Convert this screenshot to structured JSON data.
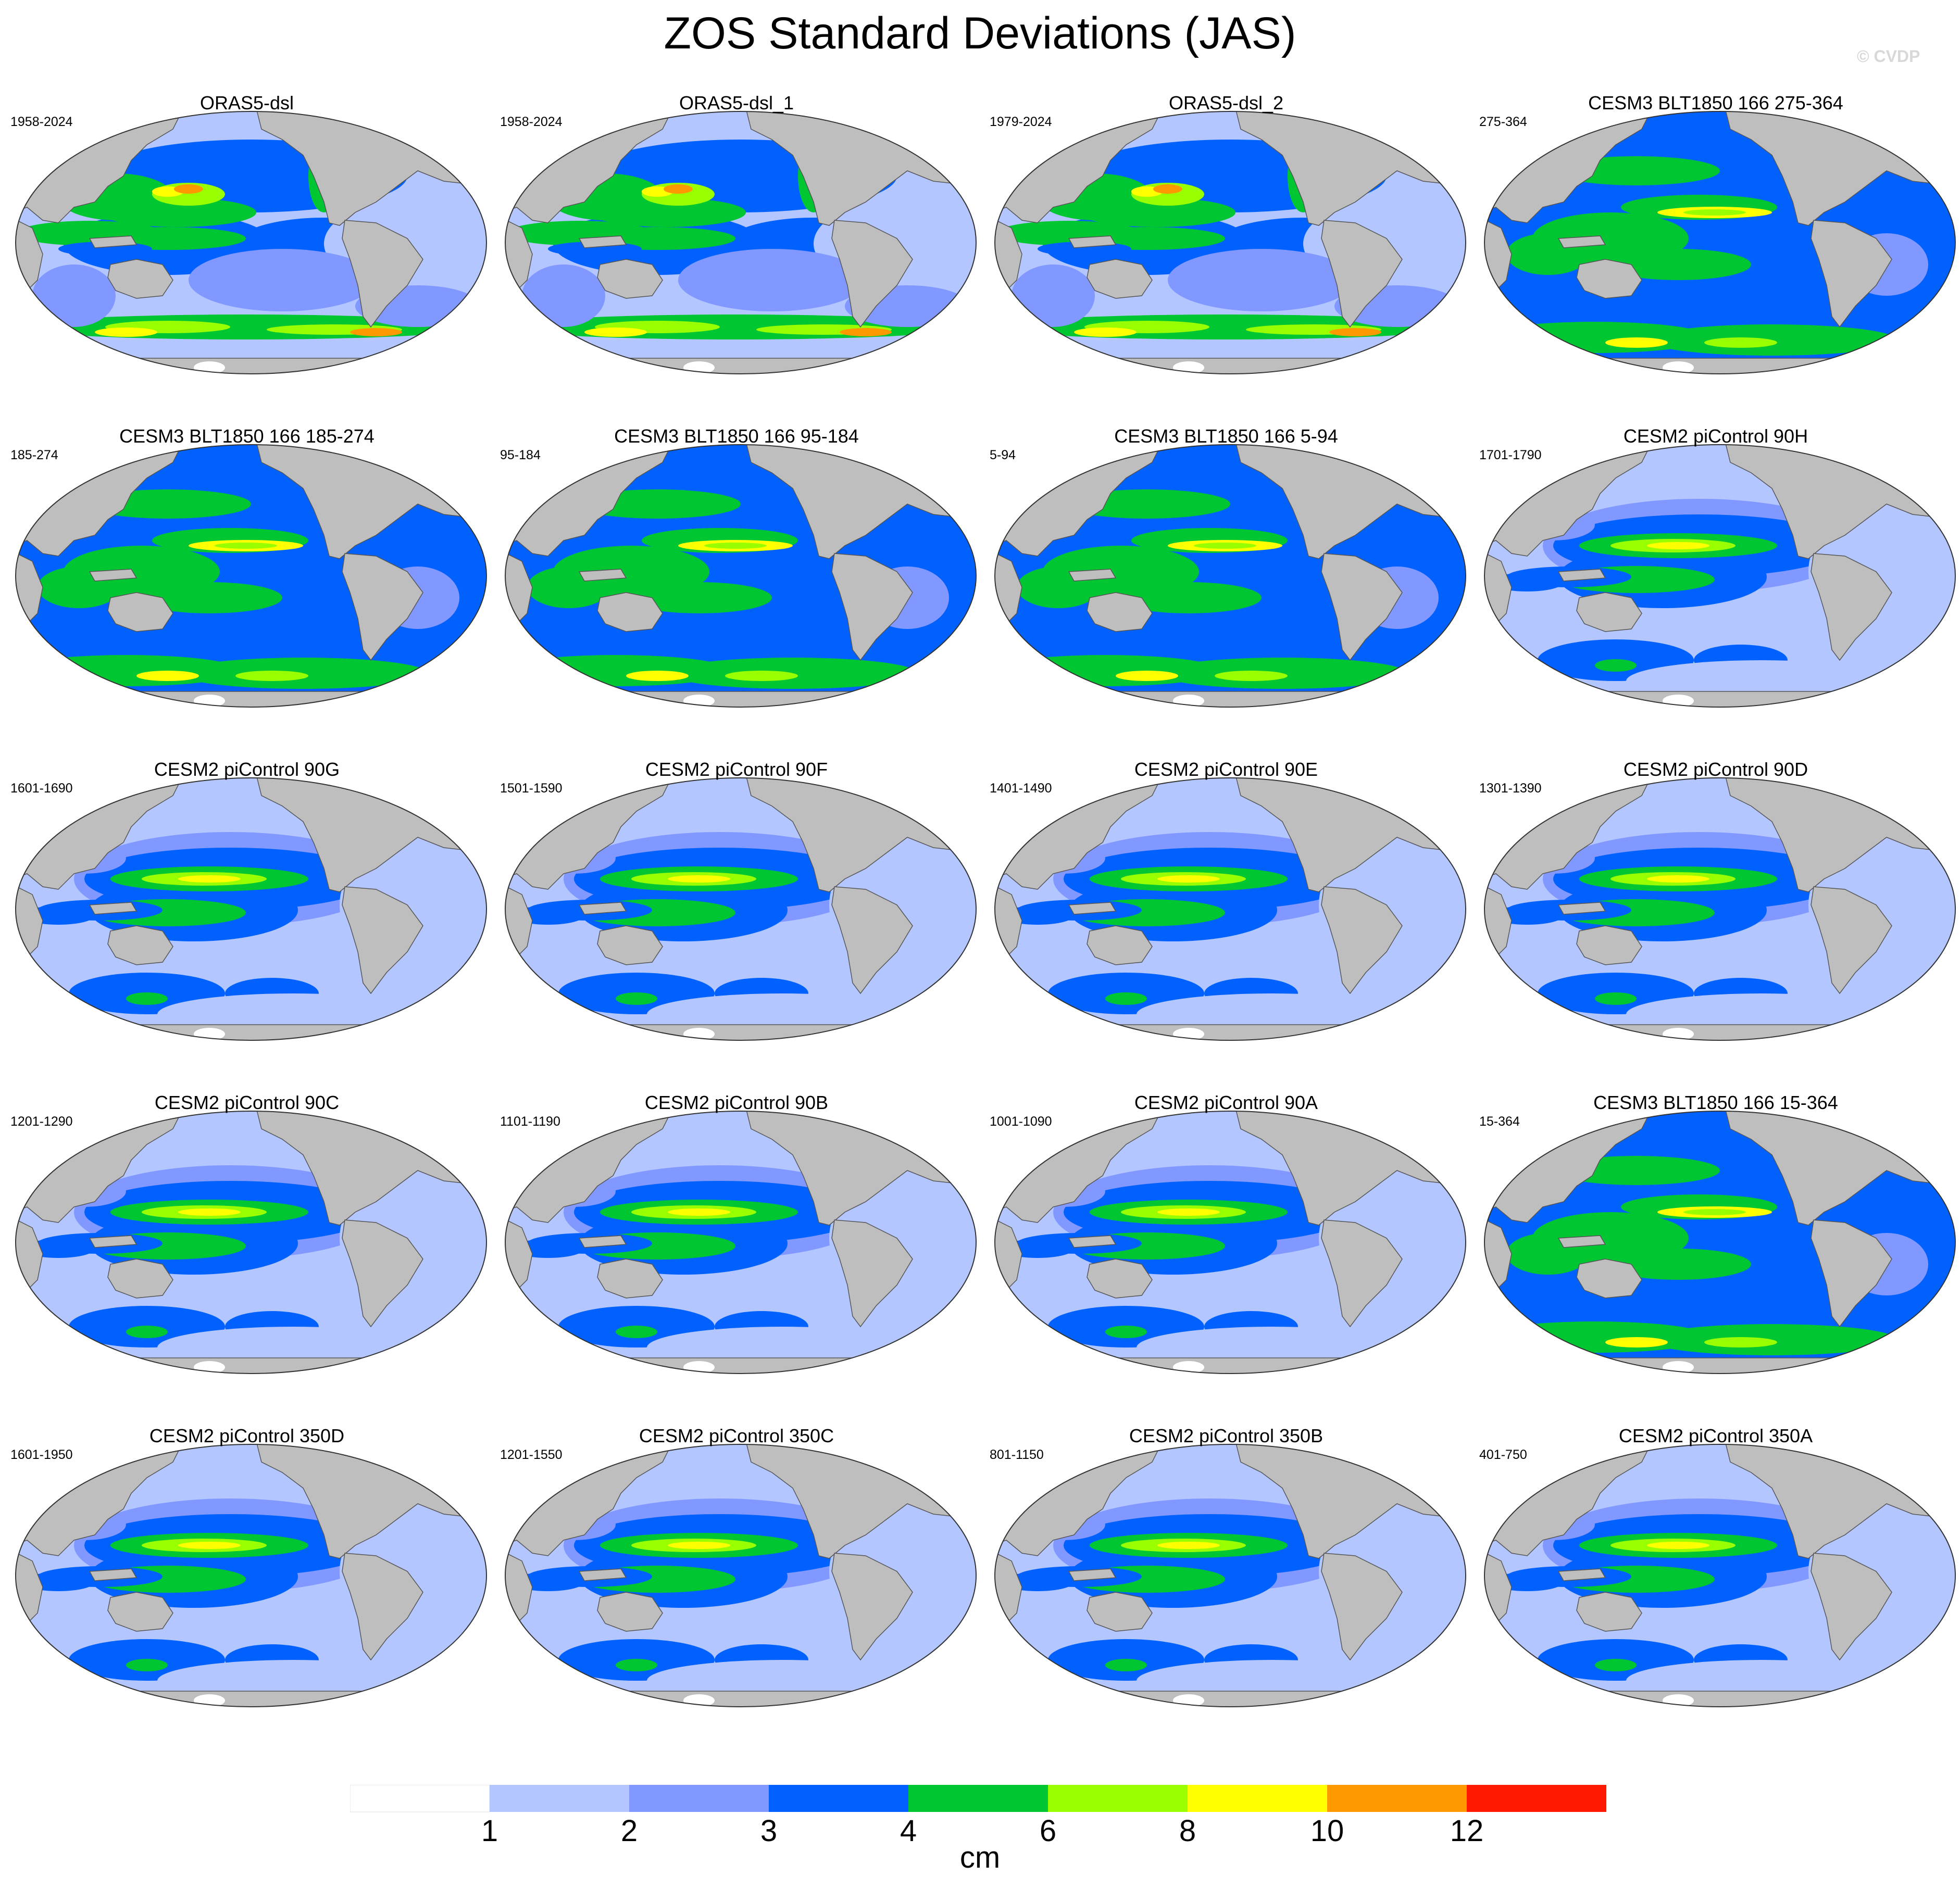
{
  "title": "ZOS Standard Deviations (JAS)",
  "copyright": "© CVDP",
  "colorbar": {
    "units": "cm",
    "tick_labels": [
      "1",
      "2",
      "3",
      "4",
      "6",
      "8",
      "10",
      "12"
    ],
    "colors": [
      "#ffffff",
      "#b3c6ff",
      "#8098ff",
      "#0061ff",
      "#00c632",
      "#99ff00",
      "#ffff00",
      "#ff9900",
      "#ff1900"
    ]
  },
  "colors": {
    "land": "#bebebe",
    "coast": "#555555"
  },
  "panels": [
    {
      "name": "ORAS5-dsl",
      "years": "1958-2024",
      "style": "obs"
    },
    {
      "name": "ORAS5-dsl_1",
      "years": "1958-2024",
      "style": "obs"
    },
    {
      "name": "ORAS5-dsl_2",
      "years": "1979-2024",
      "style": "obs"
    },
    {
      "name": "CESM3 BLT1850 166 275-364",
      "years": "275-364",
      "style": "cesm3"
    },
    {
      "name": "CESM3 BLT1850 166 185-274",
      "years": "185-274",
      "style": "cesm3"
    },
    {
      "name": "CESM3 BLT1850 166 95-184",
      "years": "95-184",
      "style": "cesm3"
    },
    {
      "name": "CESM3 BLT1850 166 5-94",
      "years": "5-94",
      "style": "cesm3"
    },
    {
      "name": "CESM2 piControl 90H",
      "years": "1701-1790",
      "style": "cesm2"
    },
    {
      "name": "CESM2 piControl 90G",
      "years": "1601-1690",
      "style": "cesm2"
    },
    {
      "name": "CESM2 piControl 90F",
      "years": "1501-1590",
      "style": "cesm2"
    },
    {
      "name": "CESM2 piControl 90E",
      "years": "1401-1490",
      "style": "cesm2"
    },
    {
      "name": "CESM2 piControl 90D",
      "years": "1301-1390",
      "style": "cesm2"
    },
    {
      "name": "CESM2 piControl 90C",
      "years": "1201-1290",
      "style": "cesm2"
    },
    {
      "name": "CESM2 piControl 90B",
      "years": "1101-1190",
      "style": "cesm2"
    },
    {
      "name": "CESM2 piControl 90A",
      "years": "1001-1090",
      "style": "cesm2"
    },
    {
      "name": "CESM3 BLT1850 166 15-364",
      "years": "15-364",
      "style": "cesm3"
    },
    {
      "name": "CESM2 piControl 350D",
      "years": "1601-1950",
      "style": "cesm2"
    },
    {
      "name": "CESM2 piControl 350C",
      "years": "1201-1550",
      "style": "cesm2"
    },
    {
      "name": "CESM2 piControl 350B",
      "years": "801-1150",
      "style": "cesm2"
    },
    {
      "name": "CESM2 piControl 350A",
      "years": "401-750",
      "style": "cesm2"
    }
  ]
}
